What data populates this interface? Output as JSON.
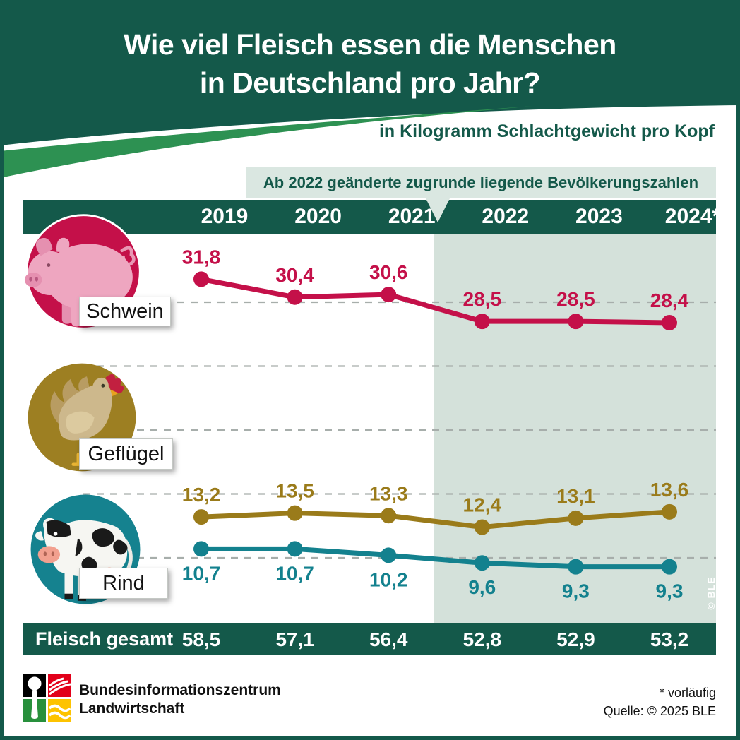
{
  "header": {
    "title_line1": "Wie viel Fleisch essen die Menschen",
    "title_line2": "in Deutschland pro Jahr?",
    "subtitle": "in Kilogramm Schlachtgewicht pro Kopf"
  },
  "note": "Ab 2022 geänderte zugrunde liegende Bevölkerungszahlen",
  "chart_data": {
    "type": "line",
    "categories": [
      "2019",
      "2020",
      "2021",
      "2022",
      "2023",
      "2024*"
    ],
    "series": [
      {
        "name": "Schwein",
        "icon": "pig-icon",
        "color": "#c41049",
        "values": [
          "31,8",
          "30,4",
          "30,6",
          "28,5",
          "28,5",
          "28,4"
        ],
        "label_position": "above"
      },
      {
        "name": "Geflügel",
        "icon": "chicken-icon",
        "color": "#9a7b1a",
        "values": [
          "13,2",
          "13,5",
          "13,3",
          "12,4",
          "13,1",
          "13,6"
        ],
        "label_position": "above"
      },
      {
        "name": "Rind",
        "icon": "cow-icon",
        "color": "#13818e",
        "values": [
          "10,7",
          "10,7",
          "10,2",
          "9,6",
          "9,3",
          "9,3"
        ],
        "label_position": "below"
      }
    ],
    "totals_row": {
      "label": "Fleisch gesamt",
      "values": [
        "58,5",
        "57,1",
        "56,4",
        "52,8",
        "52,9",
        "53,2"
      ]
    },
    "unit": "Kilogramm Schlachtgewicht pro Kopf",
    "highlight_from_category": "2022",
    "gridlines": [
      30,
      25,
      20,
      15,
      10
    ],
    "ylim": [
      7.5,
      33
    ],
    "grid": "dashed-horizontal",
    "legend_position": "left-icons"
  },
  "watermark": "© BLE",
  "footer": {
    "org_line1": "Bundesinformationszentrum",
    "org_line2": "Landwirtschaft",
    "footnote": "* vorläufig",
    "source": "Quelle: © 2025 BLE"
  },
  "colors": {
    "primary_green": "#14594a",
    "ribbon_green": "#2d9152",
    "note_bg": "#dae7e1",
    "highlight_bg": "#d4e1da",
    "schwein": "#c41049",
    "gefluegel": "#9a7b1a",
    "rind": "#13818e"
  }
}
